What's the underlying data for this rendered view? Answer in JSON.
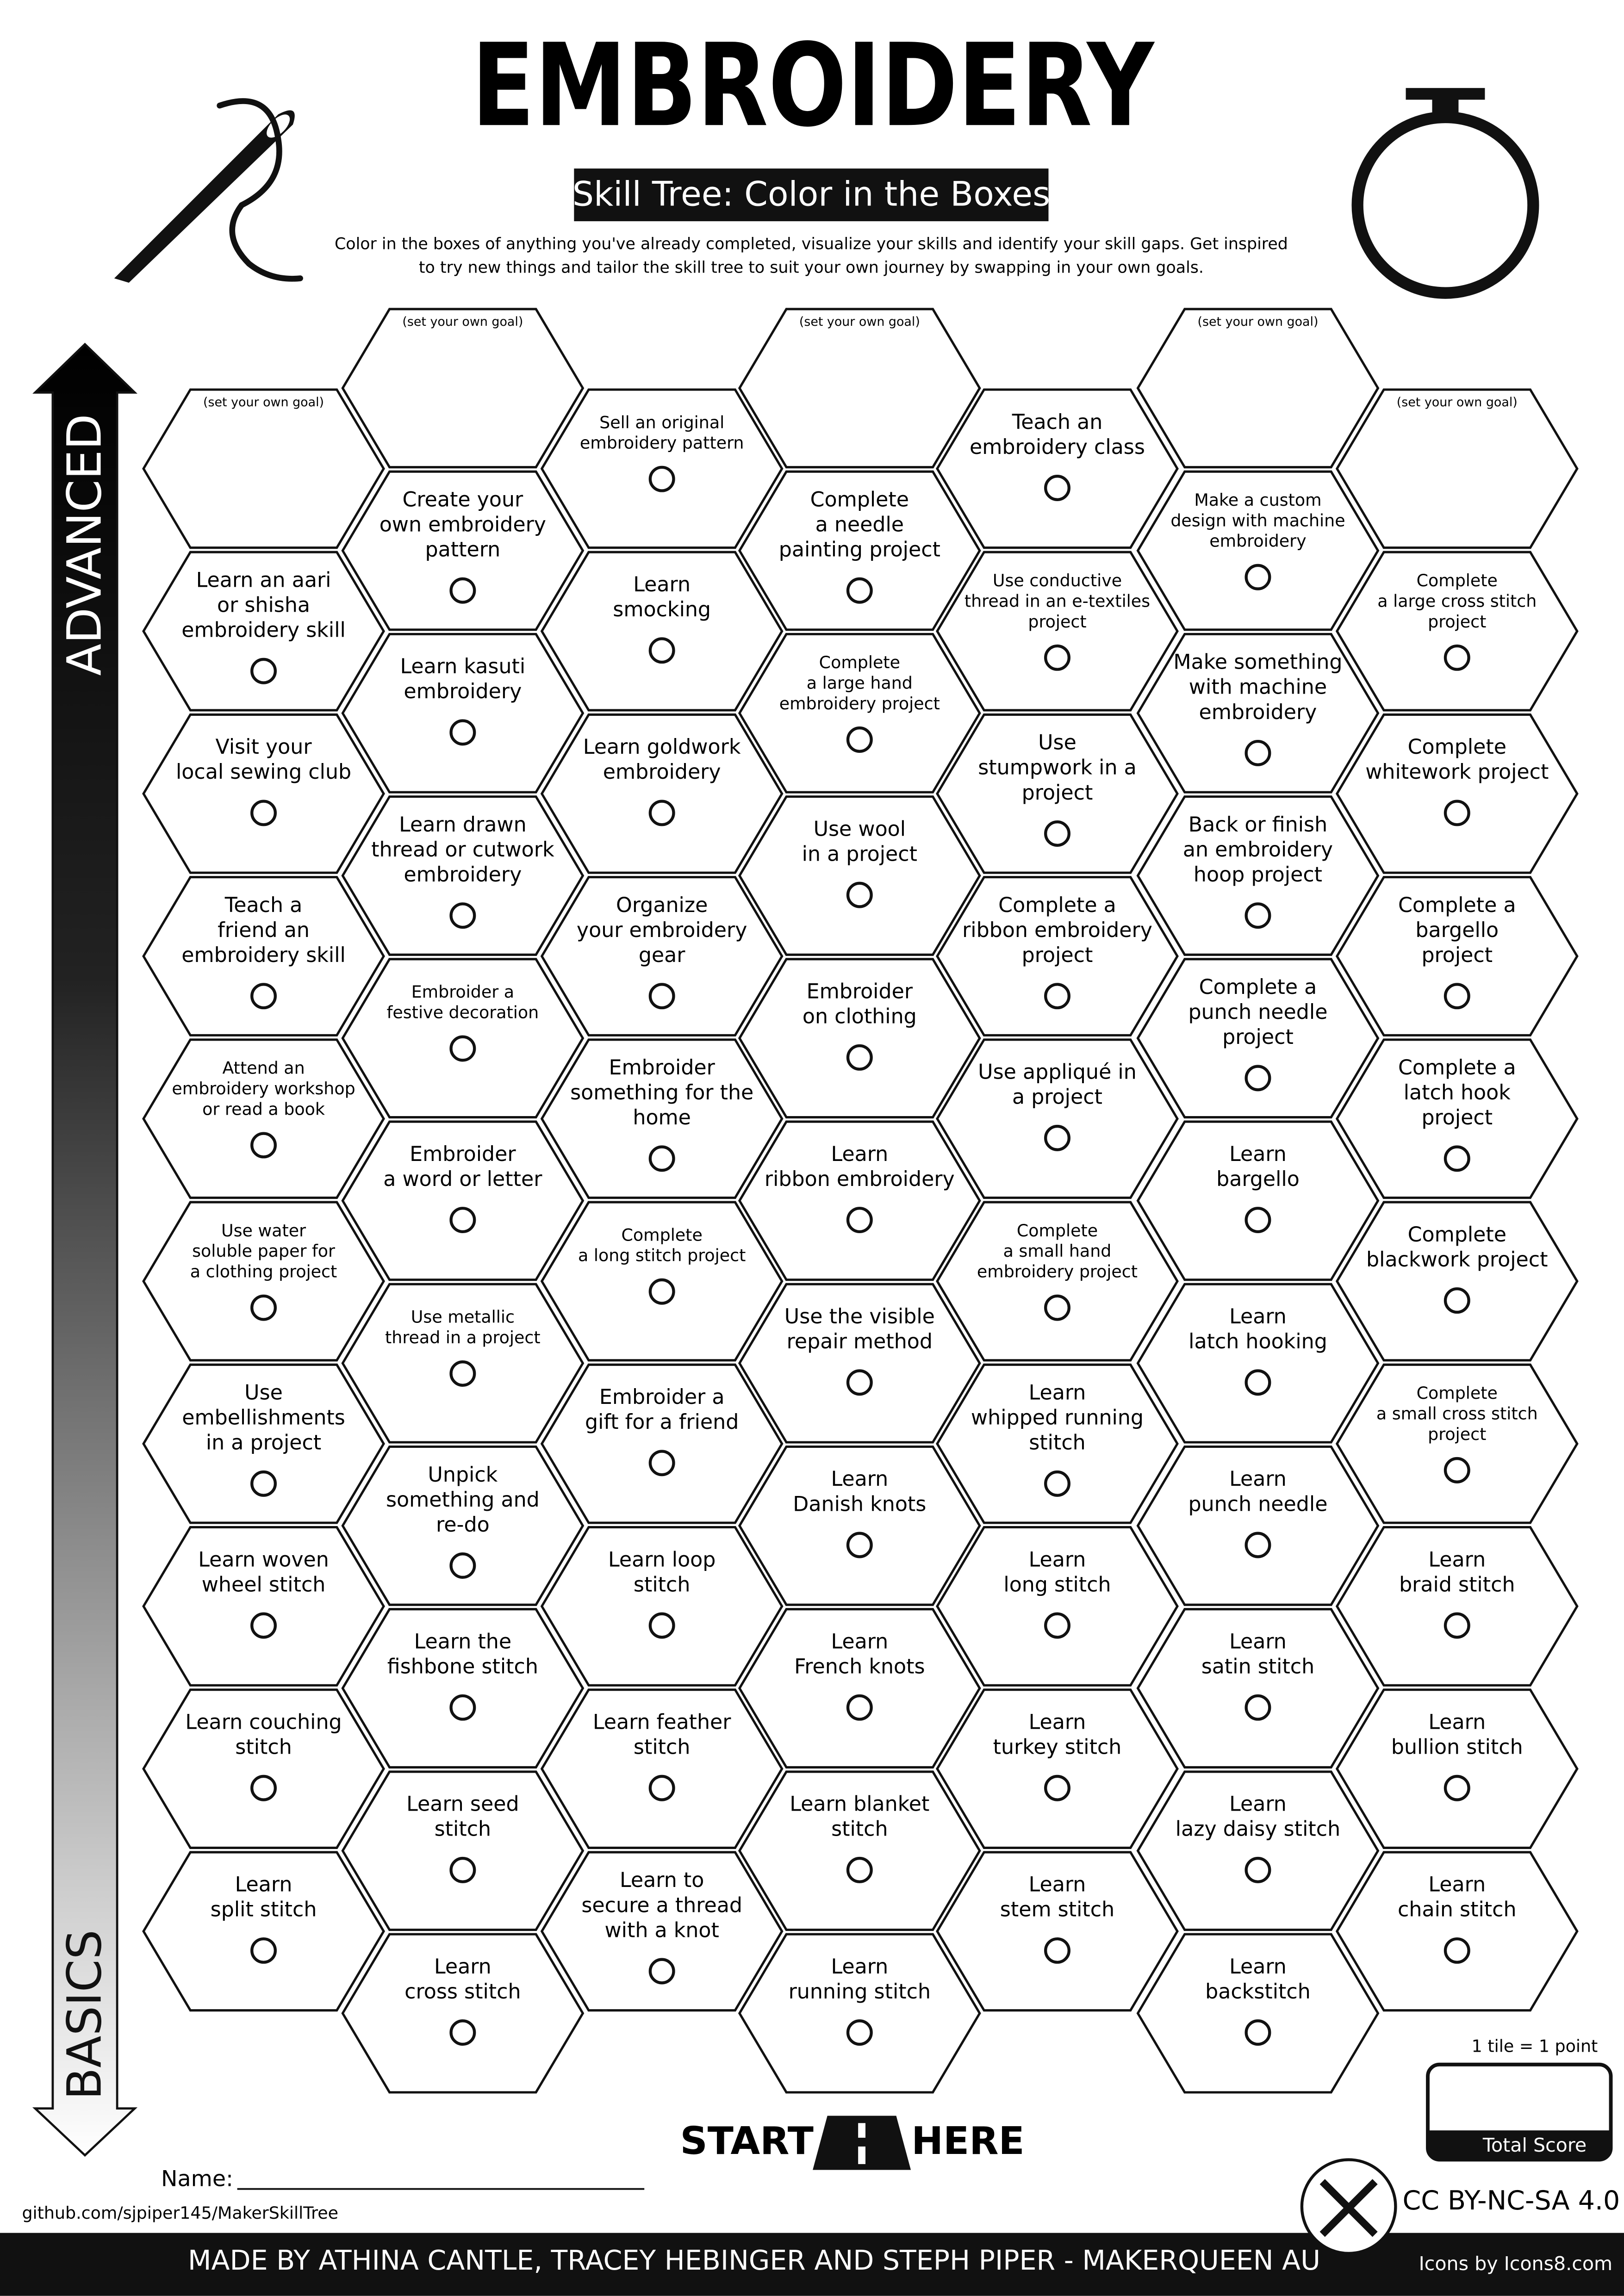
{
  "header": {
    "title": "EMBROIDERY",
    "subtitle": "Skill Tree: Color in the Boxes",
    "description": [
      "Color in the boxes of anything you've already completed, visualize your skills and identify your skill gaps.  Get inspired",
      "to try new things and tailor the skill tree to suit your own journey by swapping in your own goals."
    ]
  },
  "axis": {
    "top": "ADVANCED",
    "bottom": "BASICS"
  },
  "columns": [
    {
      "tiles": [
        {
          "note": "(set your own goal)"
        },
        {
          "lines": [
            "Learn an aari",
            "or shisha",
            "embroidery skill"
          ]
        },
        {
          "lines": [
            "Visit your",
            "local sewing club"
          ]
        },
        {
          "lines": [
            "Teach a",
            "friend an",
            "embroidery skill"
          ]
        },
        {
          "lines": [
            "Attend an",
            "embroidery workshop",
            "or read a book"
          ]
        },
        {
          "lines": [
            "Use water",
            "soluble paper for",
            "a clothing project"
          ]
        },
        {
          "lines": [
            "Use",
            "embellishments",
            "in a project"
          ]
        },
        {
          "lines": [
            "Learn woven",
            "wheel stitch"
          ]
        },
        {
          "lines": [
            "Learn couching",
            "stitch"
          ]
        },
        {
          "lines": [
            "Learn",
            "split stitch"
          ]
        }
      ]
    },
    {
      "tiles": [
        {
          "note": "(set your own goal)"
        },
        {
          "lines": [
            "Create your",
            "own embroidery",
            "pattern"
          ]
        },
        {
          "lines": [
            "Learn kasuti",
            "embroidery"
          ]
        },
        {
          "lines": [
            "Learn drawn",
            "thread or cutwork",
            "embroidery"
          ]
        },
        {
          "lines": [
            "Embroider a",
            "festive decoration"
          ]
        },
        {
          "lines": [
            "Embroider",
            "a word or letter"
          ]
        },
        {
          "lines": [
            "Use metallic",
            "thread in a project"
          ]
        },
        {
          "lines": [
            "Unpick",
            "something and",
            "re-do"
          ]
        },
        {
          "lines": [
            "Learn the",
            "fishbone stitch"
          ]
        },
        {
          "lines": [
            "Learn seed",
            "stitch"
          ]
        },
        {
          "lines": [
            "Learn",
            "cross stitch"
          ]
        }
      ]
    },
    {
      "tiles": [
        {
          "lines": [
            "Sell an original",
            "embroidery pattern"
          ]
        },
        {
          "lines": [
            "Learn",
            "smocking"
          ]
        },
        {
          "lines": [
            "Learn goldwork",
            "embroidery"
          ]
        },
        {
          "lines": [
            "Organize",
            "your embroidery",
            "gear"
          ]
        },
        {
          "lines": [
            "Embroider",
            "something for the",
            "home"
          ]
        },
        {
          "lines": [
            "Complete",
            "a long stitch project"
          ]
        },
        {
          "lines": [
            "Embroider a",
            "gift for a friend"
          ]
        },
        {
          "lines": [
            "Learn loop",
            "stitch"
          ]
        },
        {
          "lines": [
            "Learn feather",
            "stitch"
          ]
        },
        {
          "lines": [
            "Learn to",
            "secure a thread",
            "with a knot"
          ]
        }
      ]
    },
    {
      "tiles": [
        {
          "note": "(set your own goal)"
        },
        {
          "lines": [
            "Complete",
            "a needle",
            "painting project"
          ]
        },
        {
          "lines": [
            "Complete",
            "a large hand",
            "embroidery project"
          ]
        },
        {
          "lines": [
            "Use wool",
            "in a project"
          ]
        },
        {
          "lines": [
            "Embroider",
            "on clothing"
          ]
        },
        {
          "lines": [
            "Learn",
            "ribbon embroidery"
          ]
        },
        {
          "lines": [
            "Use the visible",
            "repair method"
          ]
        },
        {
          "lines": [
            "Learn",
            "Danish knots"
          ]
        },
        {
          "lines": [
            "Learn",
            "French knots"
          ]
        },
        {
          "lines": [
            "Learn blanket",
            "stitch"
          ]
        },
        {
          "lines": [
            "Learn",
            "running stitch"
          ]
        }
      ]
    },
    {
      "tiles": [
        {
          "lines": [
            "Teach an",
            "embroidery class"
          ]
        },
        {
          "lines": [
            "Use conductive",
            "thread in an e-textiles",
            "project"
          ]
        },
        {
          "lines": [
            "Use",
            "stumpwork in a",
            "project"
          ]
        },
        {
          "lines": [
            "Complete a",
            "ribbon embroidery",
            "project"
          ]
        },
        {
          "lines": [
            "Use appliqué in",
            "a project"
          ]
        },
        {
          "lines": [
            "Complete",
            "a small hand",
            "embroidery project"
          ]
        },
        {
          "lines": [
            "Learn",
            "whipped running",
            "stitch"
          ]
        },
        {
          "lines": [
            "Learn",
            "long stitch"
          ]
        },
        {
          "lines": [
            "Learn",
            "turkey stitch"
          ]
        },
        {
          "lines": [
            "Learn",
            "stem stitch"
          ]
        }
      ]
    },
    {
      "tiles": [
        {
          "note": "(set your own goal)"
        },
        {
          "lines": [
            "Make a custom",
            "design with  machine",
            "embroidery"
          ]
        },
        {
          "lines": [
            "Make something",
            "with machine",
            "embroidery"
          ]
        },
        {
          "lines": [
            "Back or finish",
            "an embroidery",
            "hoop project"
          ]
        },
        {
          "lines": [
            "Complete a",
            "punch needle",
            "project"
          ]
        },
        {
          "lines": [
            "Learn",
            "bargello"
          ]
        },
        {
          "lines": [
            "Learn",
            "latch hooking"
          ]
        },
        {
          "lines": [
            "Learn",
            "punch needle"
          ]
        },
        {
          "lines": [
            "Learn",
            "satin stitch"
          ]
        },
        {
          "lines": [
            "Learn",
            "lazy daisy stitch"
          ]
        },
        {
          "lines": [
            "Learn",
            "backstitch"
          ]
        }
      ]
    },
    {
      "tiles": [
        {
          "note": "(set your own goal)"
        },
        {
          "lines": [
            "Complete",
            "a large cross stitch",
            "project"
          ]
        },
        {
          "lines": [
            "Complete",
            "whitework project"
          ]
        },
        {
          "lines": [
            "Complete a",
            "bargello",
            "project"
          ]
        },
        {
          "lines": [
            "Complete a",
            "latch hook",
            "project"
          ]
        },
        {
          "lines": [
            "Complete",
            "blackwork project"
          ]
        },
        {
          "lines": [
            "Complete",
            "a small cross stitch",
            "project"
          ]
        },
        {
          "lines": [
            "Learn",
            "braid stitch"
          ]
        },
        {
          "lines": [
            "Learn",
            "bullion stitch"
          ]
        },
        {
          "lines": [
            "Learn",
            "chain stitch"
          ]
        }
      ]
    }
  ],
  "footer": {
    "start": "START",
    "here": "HERE",
    "name_label": "Name:",
    "github": "github.com/sjpiper145/MakerSkillTree",
    "score_note": "1 tile = 1 point",
    "score_label": "Total Score",
    "license": "CC BY-NC-SA 4.0",
    "credits": "MADE BY ATHINA CANTLE, TRACEY HEBINGER AND STEPH PIPER  -  MAKERQUEEN AU",
    "icons": "Icons by Icons8.com"
  }
}
